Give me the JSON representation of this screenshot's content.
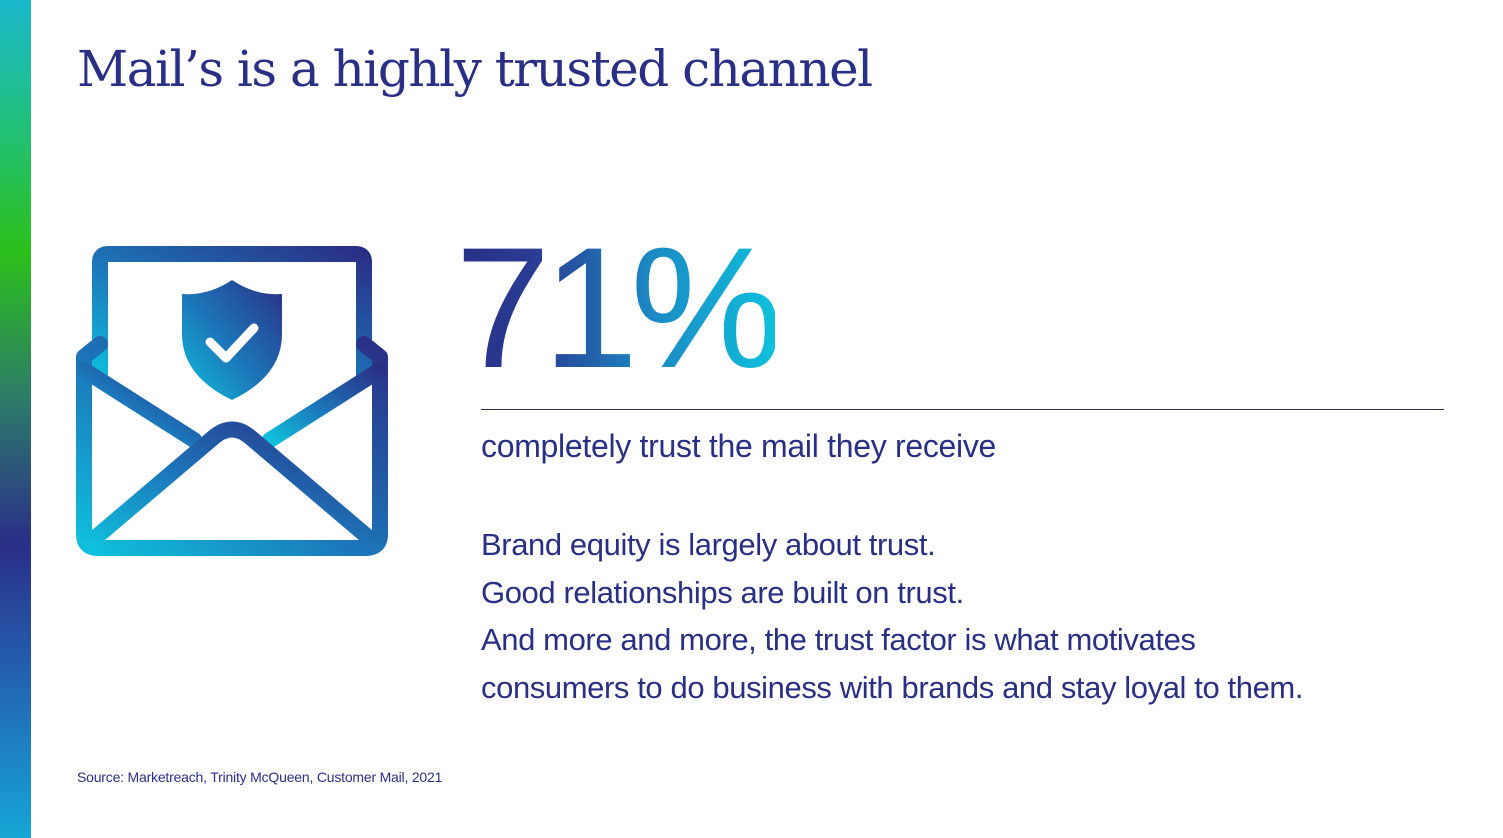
{
  "slide": {
    "title": "Mail’s is a highly trusted channel",
    "stat": {
      "value": "71%",
      "caption": "completely trust the mail they receive"
    },
    "body_lines": [
      "Brand equity is largely about trust.",
      "Good relationships are built on trust.",
      "And more and more, the trust factor is what motivates",
      "consumers to do business with brands and stay loyal to them."
    ],
    "source": "Source: Marketreach, Trinity McQueen, Customer Mail, 2021",
    "icon": "envelope-shield-check-icon",
    "colors": {
      "navy": "#2a2f86",
      "teal": "#0fc0dc",
      "mid_blue": "#1b8ac4"
    }
  }
}
